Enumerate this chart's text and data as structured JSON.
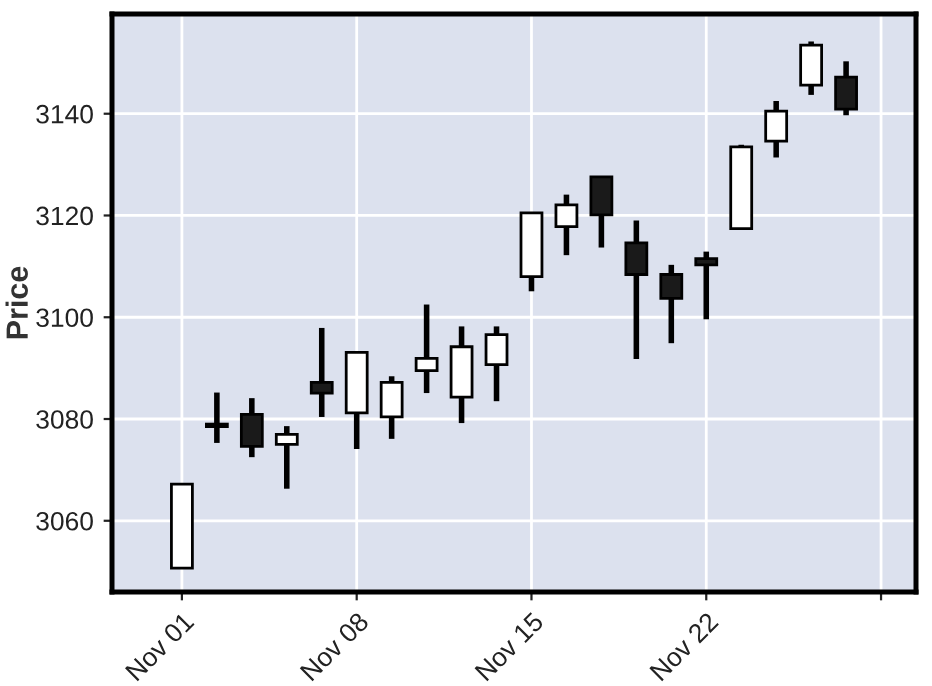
{
  "chart_data": {
    "type": "candlestick",
    "ylabel": "Price",
    "categories": [
      "Nov 01",
      null,
      null,
      null,
      null,
      "Nov 08",
      null,
      null,
      null,
      null,
      "Nov 15",
      null,
      null,
      null,
      null,
      "Nov 22",
      null,
      null,
      null,
      null
    ],
    "ohlc": [
      [
        3050.7,
        3067.2,
        3050.7,
        3067.2
      ],
      [
        3079.0,
        3085.2,
        3075.3,
        3078.5
      ],
      [
        3080.9,
        3084.1,
        3072.5,
        3074.6
      ],
      [
        3075.0,
        3078.6,
        3066.3,
        3077.0
      ],
      [
        3087.2,
        3097.9,
        3080.4,
        3085.1
      ],
      [
        3081.2,
        3093.1,
        3074.1,
        3093.1
      ],
      [
        3080.4,
        3088.4,
        3076.1,
        3087.2
      ],
      [
        3089.5,
        3102.5,
        3085.1,
        3091.9
      ],
      [
        3084.3,
        3098.2,
        3079.2,
        3094.2
      ],
      [
        3090.7,
        3098.2,
        3083.5,
        3096.6
      ],
      [
        3108.0,
        3120.5,
        3105.1,
        3120.5
      ],
      [
        3117.8,
        3124.1,
        3112.2,
        3122.1
      ],
      [
        3127.6,
        3127.6,
        3113.7,
        3120.1
      ],
      [
        3114.6,
        3119.0,
        3091.8,
        3108.4
      ],
      [
        3108.4,
        3110.3,
        3094.9,
        3103.7
      ],
      [
        3111.5,
        3112.9,
        3099.6,
        3110.3
      ],
      [
        3117.4,
        3133.9,
        3117.4,
        3133.5
      ],
      [
        3134.6,
        3142.5,
        3131.4,
        3140.5
      ],
      [
        3145.6,
        3154.2,
        3143.7,
        3153.5
      ],
      [
        3147.2,
        3150.3,
        3139.7,
        3140.9
      ]
    ],
    "colors": [
      "#ffffff",
      "#1a1a1a",
      "#1a1a1a",
      "#ffffff",
      "#1a1a1a",
      "#ffffff",
      "#ffffff",
      "#ffffff",
      "#ffffff",
      "#ffffff",
      "#ffffff",
      "#ffffff",
      "#1a1a1a",
      "#1a1a1a",
      "#1a1a1a",
      "#1a1a1a",
      "#ffffff",
      "#ffffff",
      "#ffffff",
      "#1a1a1a"
    ],
    "ylim": [
      3046,
      3159.6
    ],
    "yticks": [
      3060,
      3080,
      3100,
      3120,
      3140
    ],
    "grid": true
  }
}
